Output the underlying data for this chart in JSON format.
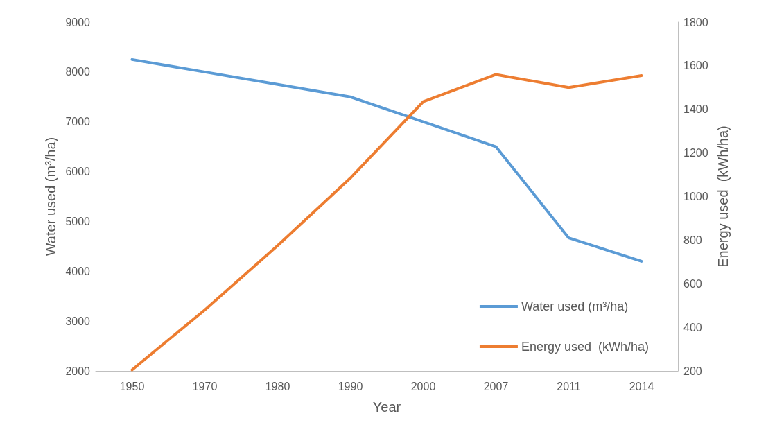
{
  "chart_data": {
    "type": "line",
    "xlabel": "Year",
    "ylabel": "Water used (m³/ha)",
    "y2label": "Energy used  (kWh/ha)",
    "categories": [
      "1950",
      "1970",
      "1980",
      "1990",
      "2000",
      "2007",
      "2011",
      "2014"
    ],
    "series": [
      {
        "name": "Water used (m³/ha)",
        "color": "#5b9bd5",
        "values": [
          8250,
          8000,
          7750,
          7500,
          7000,
          6500,
          4670,
          4200
        ]
      },
      {
        "name": "Energy used  (kWh/ha)",
        "color": "#ed7d31",
        "axis": "y2",
        "values": [
          205,
          480,
          775,
          1085,
          1435,
          1560,
          1500,
          1555
        ]
      }
    ],
    "ylim": [
      2000,
      9000
    ],
    "yticks": [
      2000,
      3000,
      4000,
      5000,
      6000,
      7000,
      8000,
      9000
    ],
    "y2lim": [
      200,
      1800
    ],
    "y2ticks": [
      200,
      400,
      600,
      800,
      1000,
      1200,
      1400,
      1600,
      1800
    ],
    "grid": false,
    "legend": "bottom right",
    "marker": "none",
    "line_style": "solid"
  }
}
